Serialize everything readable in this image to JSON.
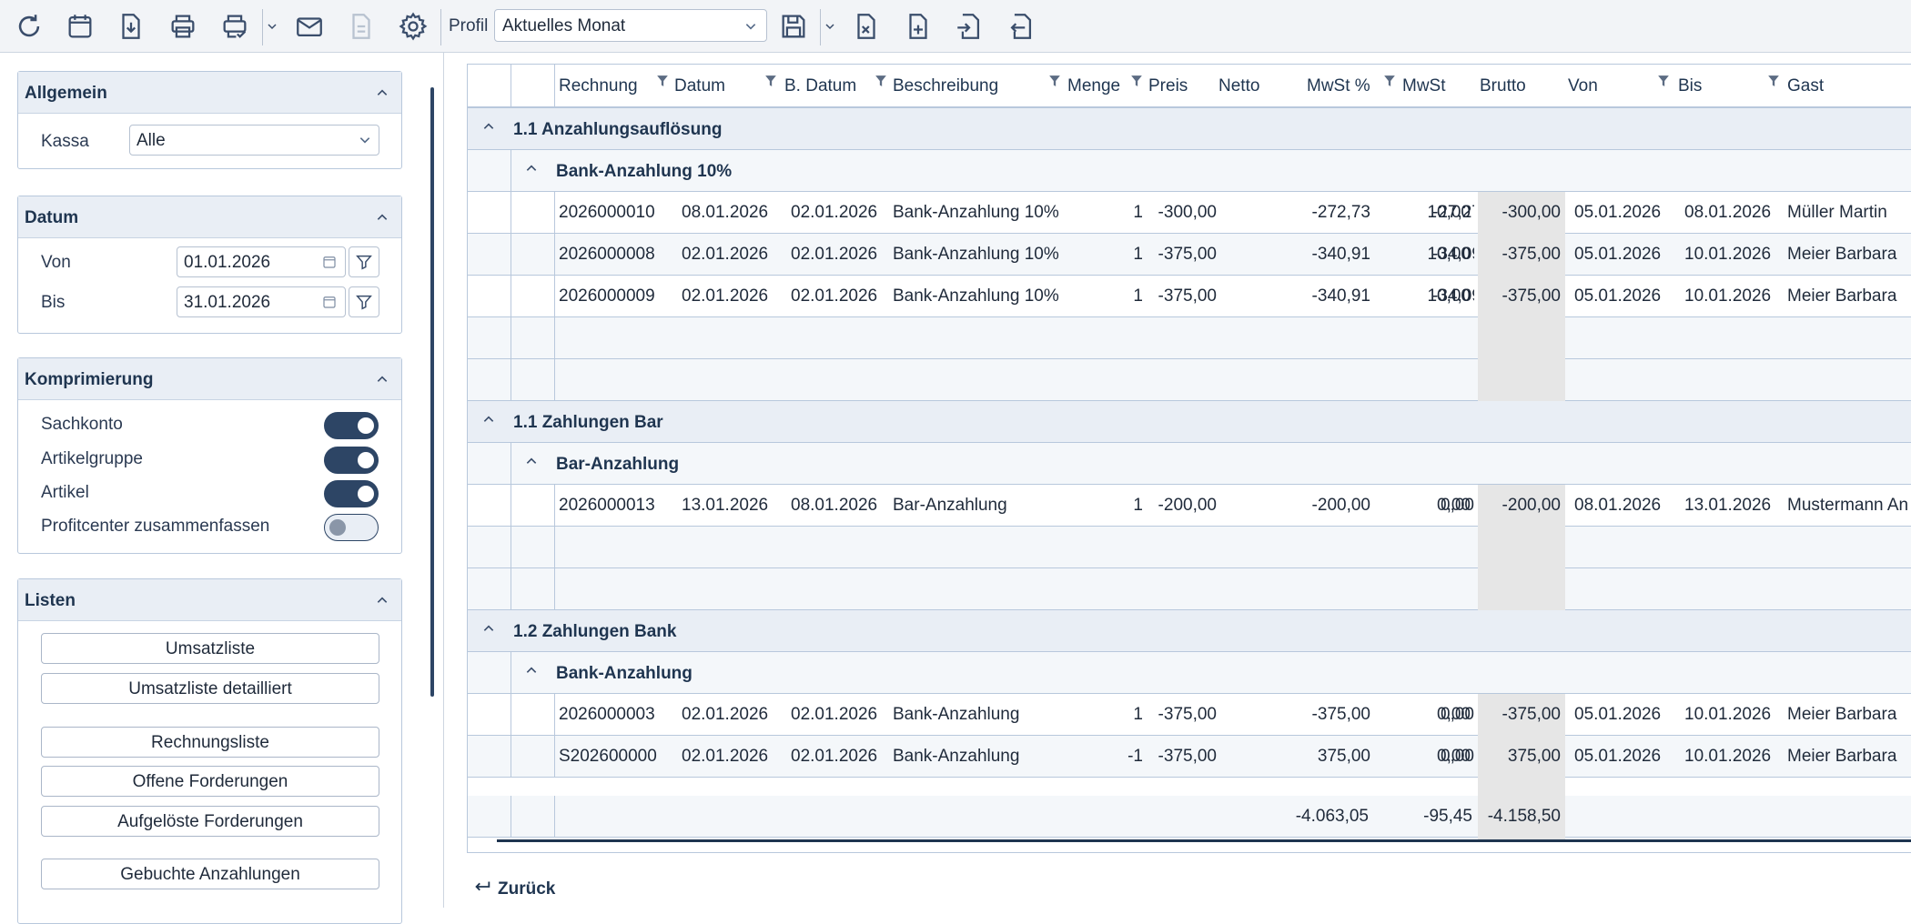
{
  "toolbar": {
    "profil_label": "Profil",
    "profil_value": "Aktuelles Monat"
  },
  "sidebar": {
    "allgemein": {
      "title": "Allgemein",
      "kassa_label": "Kassa",
      "kassa_value": "Alle"
    },
    "datum": {
      "title": "Datum",
      "von_label": "Von",
      "von_value": "01.01.2026",
      "bis_label": "Bis",
      "bis_value": "31.01.2026"
    },
    "komprimierung": {
      "title": "Komprimierung",
      "items": [
        {
          "label": "Sachkonto",
          "on": true
        },
        {
          "label": "Artikelgruppe",
          "on": true
        },
        {
          "label": "Artikel",
          "on": true
        },
        {
          "label": "Profitcenter zusammenfassen",
          "on": false
        }
      ]
    },
    "listen": {
      "title": "Listen",
      "buttons": [
        "Umsatzliste",
        "Umsatzliste detailliert",
        "Rechnungsliste",
        "Offene Forderungen",
        "Aufgelöste Forderungen",
        "Gebuchte Anzahlungen"
      ]
    }
  },
  "grid": {
    "columns": [
      "Rechnung",
      "Datum",
      "B. Datum",
      "Beschreibung",
      "Menge",
      "Preis",
      "Netto",
      "MwSt %",
      "MwSt",
      "Brutto",
      "Von",
      "Bis",
      "Gast"
    ],
    "groups": [
      {
        "title": "1.1 Anzahlungsauflösung",
        "subgroup": "Bank-Anzahlung 10%",
        "rows": [
          [
            "2026000010",
            "08.01.2026",
            "02.01.2026",
            "Bank-Anzahlung 10%",
            "1",
            "-300,00",
            "-272,73",
            "10,00",
            "-27,27",
            "-300,00",
            "05.01.2026",
            "08.01.2026",
            "Müller Martin"
          ],
          [
            "2026000008",
            "02.01.2026",
            "02.01.2026",
            "Bank-Anzahlung 10%",
            "1",
            "-375,00",
            "-340,91",
            "10,00",
            "-34,09",
            "-375,00",
            "05.01.2026",
            "10.01.2026",
            "Meier Barbara"
          ],
          [
            "2026000009",
            "02.01.2026",
            "02.01.2026",
            "Bank-Anzahlung 10%",
            "1",
            "-375,00",
            "-340,91",
            "10,00",
            "-34,09",
            "-375,00",
            "05.01.2026",
            "10.01.2026",
            "Meier Barbara"
          ]
        ]
      },
      {
        "title": "1.1 Zahlungen Bar",
        "subgroup": "Bar-Anzahlung",
        "rows": [
          [
            "2026000013",
            "13.01.2026",
            "08.01.2026",
            "Bar-Anzahlung",
            "1",
            "-200,00",
            "-200,00",
            "0,00",
            "0,00",
            "-200,00",
            "08.01.2026",
            "13.01.2026",
            "Mustermann An"
          ]
        ]
      },
      {
        "title": "1.2 Zahlungen Bank",
        "subgroup": "Bank-Anzahlung",
        "rows": [
          [
            "2026000003",
            "02.01.2026",
            "02.01.2026",
            "Bank-Anzahlung",
            "1",
            "-375,00",
            "-375,00",
            "0,00",
            "0,00",
            "-375,00",
            "05.01.2026",
            "10.01.2026",
            "Meier Barbara"
          ],
          [
            "S202600000",
            "02.01.2026",
            "02.01.2026",
            "Bank-Anzahlung",
            "-1",
            "-375,00",
            "375,00",
            "0,00",
            "0,00",
            "375,00",
            "05.01.2026",
            "10.01.2026",
            "Meier Barbara"
          ]
        ]
      }
    ],
    "totals": {
      "netto": "-4.063,05",
      "mwst": "-95,45",
      "brutto": "-4.158,50"
    }
  },
  "footer": {
    "back_label": "Zurück"
  }
}
